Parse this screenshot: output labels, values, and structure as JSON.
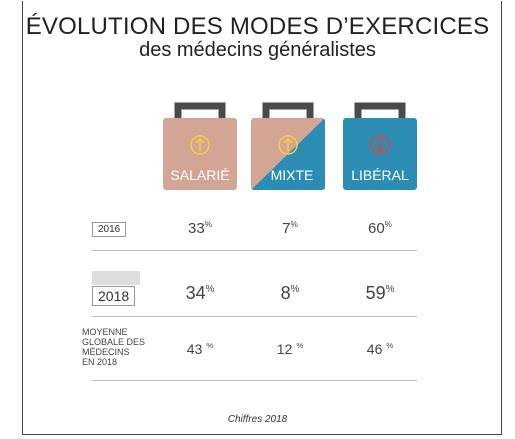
{
  "header": {
    "title": "ÉVOLUTION DES MODES D’EXERCICES",
    "subtitle": "des médecins généralistes"
  },
  "columns": [
    {
      "label": "SALARIÉ"
    },
    {
      "label": "MIXTE"
    },
    {
      "label": "LIBÉRAL"
    }
  ],
  "rows": [
    {
      "label": "2016",
      "cells": [
        {
          "value": "33",
          "unit": "%"
        },
        {
          "value": "7",
          "unit": "%"
        },
        {
          "value": "60",
          "unit": "%"
        }
      ]
    },
    {
      "label": "2018",
      "cells": [
        {
          "value": "34",
          "unit": "%"
        },
        {
          "value": "8",
          "unit": "%"
        },
        {
          "value": "59",
          "unit": "%"
        }
      ]
    },
    {
      "label_lines": [
        "MOYENNE",
        "GLOBALE DES",
        "MÉDECINS",
        "EN 2018"
      ],
      "cells": [
        {
          "value": "43",
          "unit": "%"
        },
        {
          "value": "12",
          "unit": "%"
        },
        {
          "value": "46",
          "unit": "%"
        }
      ]
    }
  ],
  "footer": "Chiffres 2018"
}
